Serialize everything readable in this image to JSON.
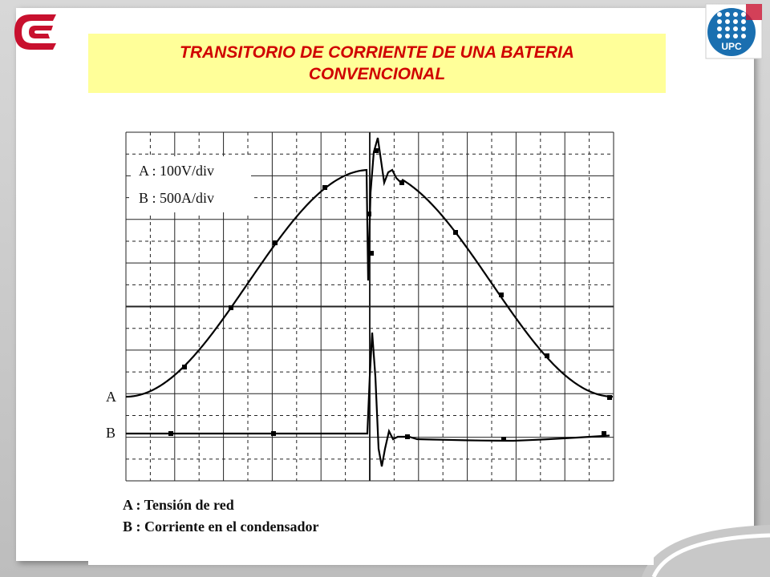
{
  "title": "TRANSITORIO DE CORRIENTE DE UNA BATERIA CONVENCIONAL",
  "logos": {
    "right": "UPC"
  },
  "scope": {
    "scale_a": "A : 100V/div",
    "scale_b": "B : 500A/div",
    "trace_a": "A",
    "trace_b": "B"
  },
  "legend": [
    "A : Tensión de red",
    "B : Corriente en el condensador"
  ]
}
